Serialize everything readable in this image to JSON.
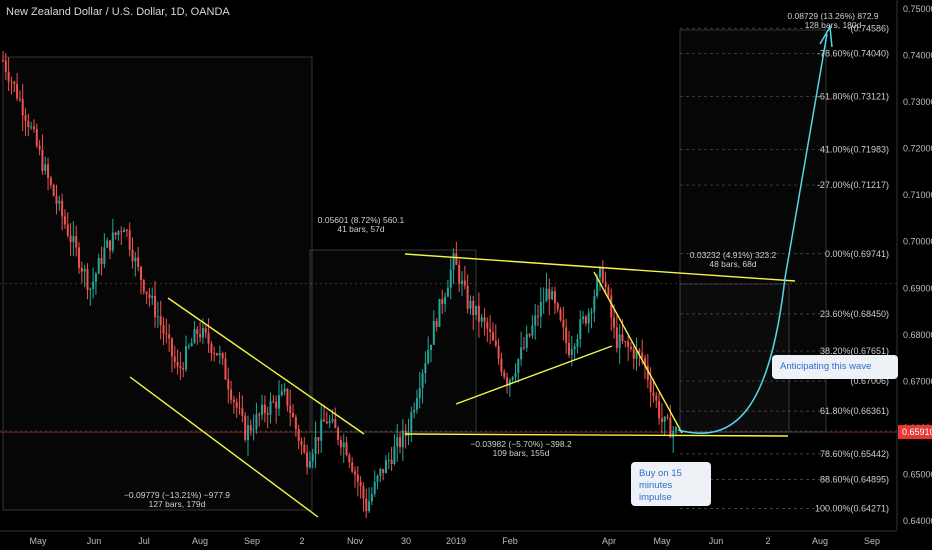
{
  "title": "New Zealand Dollar / U.S. Dollar, 1D, OANDA",
  "colors": {
    "background": "#000000",
    "up_candle": "#26a69a",
    "down_candle": "#ef5350",
    "trendline": "#f5f547",
    "projection": "#53d6e6",
    "price_label": "#e53935",
    "axis_text": "#bdbdbd"
  },
  "chart_data": {
    "type": "candlestick",
    "symbol": "NZDUSD",
    "timeframe": "1D",
    "ylim": [
      0.638,
      0.7535
    ],
    "y_ticks": [
      "0.75000",
      "0.74000",
      "0.73000",
      "0.72000",
      "0.71000",
      "0.70000",
      "0.69000",
      "0.68000",
      "0.67000",
      "0.66000",
      "0.65000",
      "0.64000"
    ],
    "x_ticks": [
      "May",
      "Jun",
      "Jul",
      "Aug",
      "Sep",
      "2",
      "Nov",
      "30",
      "2019",
      "Feb",
      "Apr",
      "May",
      "Jun",
      "2",
      "Aug",
      "Sep"
    ],
    "current_price": "0.65910",
    "close_path": [
      {
        "month": 0.0,
        "price": 0.739
      },
      {
        "month": 0.35,
        "price": 0.727
      },
      {
        "month": 0.7,
        "price": 0.712
      },
      {
        "month": 1.0,
        "price": 0.701
      },
      {
        "month": 1.3,
        "price": 0.69
      },
      {
        "month": 1.5,
        "price": 0.698
      },
      {
        "month": 1.8,
        "price": 0.704
      },
      {
        "month": 2.0,
        "price": 0.694
      },
      {
        "month": 2.3,
        "price": 0.684
      },
      {
        "month": 2.6,
        "price": 0.672
      },
      {
        "month": 2.9,
        "price": 0.681
      },
      {
        "month": 3.2,
        "price": 0.676
      },
      {
        "month": 3.6,
        "price": 0.659
      },
      {
        "month": 3.9,
        "price": 0.664
      },
      {
        "month": 4.2,
        "price": 0.667
      },
      {
        "month": 4.5,
        "price": 0.653
      },
      {
        "month": 4.8,
        "price": 0.662
      },
      {
        "month": 5.1,
        "price": 0.656
      },
      {
        "month": 5.4,
        "price": 0.643
      },
      {
        "month": 5.6,
        "price": 0.65
      },
      {
        "month": 5.85,
        "price": 0.656
      },
      {
        "month": 6.0,
        "price": 0.659
      },
      {
        "month": 6.2,
        "price": 0.671
      },
      {
        "month": 6.45,
        "price": 0.684
      },
      {
        "month": 6.7,
        "price": 0.696
      },
      {
        "month": 6.9,
        "price": 0.687
      },
      {
        "month": 7.2,
        "price": 0.681
      },
      {
        "month": 7.5,
        "price": 0.67
      },
      {
        "month": 7.8,
        "price": 0.679
      },
      {
        "month": 8.1,
        "price": 0.69
      },
      {
        "month": 8.4,
        "price": 0.677
      },
      {
        "month": 8.7,
        "price": 0.685
      },
      {
        "month": 8.9,
        "price": 0.694
      },
      {
        "month": 9.1,
        "price": 0.679
      },
      {
        "month": 9.5,
        "price": 0.675
      },
      {
        "month": 9.8,
        "price": 0.661
      },
      {
        "month": 10.0,
        "price": 0.6591
      }
    ],
    "fib_levels": [
      {
        "label": "100.00%(0.64271)",
        "price": 0.64271
      },
      {
        "label": "88.60%(0.64895)",
        "price": 0.64895
      },
      {
        "label": "78.60%(0.65442)",
        "price": 0.65442
      },
      {
        "label": "61.80%(0.66361)",
        "price": 0.66361
      },
      {
        "label": "(0.67006)",
        "price": 0.67006
      },
      {
        "label": "38.20%(0.67651)",
        "price": 0.67651
      },
      {
        "label": "23.60%(0.68450)",
        "price": 0.6845
      },
      {
        "label": "0.00%(0.69741)",
        "price": 0.69741
      },
      {
        "label": "-27.00%(0.71217)",
        "price": 0.71217
      },
      {
        "label": "41.00%(0.71983)",
        "price": 0.71983
      },
      {
        "label": "-61.80%(0.73121)",
        "price": 0.73121
      },
      {
        "label": "-78.60%(0.74040)",
        "price": 0.7404
      },
      {
        "label": "-(0.74586)",
        "price": 0.74586
      }
    ],
    "measures": [
      {
        "line1": "−0.09779 (−13.21%) −977.9",
        "line2": "127 bars, 179d"
      },
      {
        "line1": "0.05601 (8.72%) 560.1",
        "line2": "41 bars, 57d"
      },
      {
        "line1": "−0.03982 (−5.70%) −398.2",
        "line2": "109 bars, 155d"
      },
      {
        "line1": "0.03232 (4.91%) 323.2",
        "line2": "48 bars, 68d"
      },
      {
        "line1": "0.08729 (13.26%) 872.9",
        "line2": "128 bars, 180d"
      }
    ],
    "annotations": [
      {
        "text": "Anticipating this wave"
      },
      {
        "line1": "Buy on 15",
        "line2": "minutes impulse"
      }
    ]
  }
}
